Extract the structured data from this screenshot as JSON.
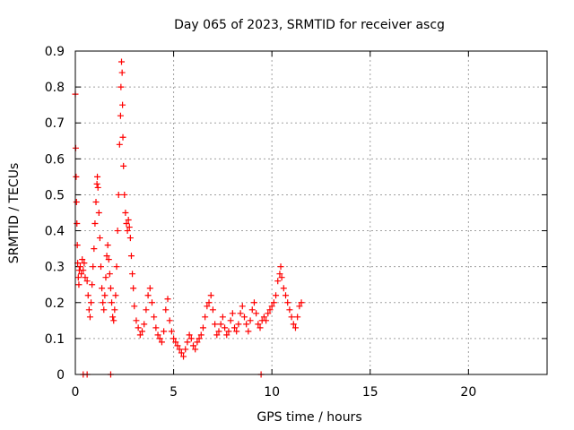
{
  "chart_data": {
    "type": "scatter",
    "title": "Day 065 of 2023, SRMTID for receiver ascg",
    "xlabel": "GPS time / hours",
    "ylabel": "SRMTID / TECUs",
    "xlim": [
      0,
      24
    ],
    "ylim": [
      0,
      0.9
    ],
    "xticks": [
      0,
      5,
      10,
      15,
      20
    ],
    "yticks": [
      0,
      0.1,
      0.2,
      0.3,
      0.4,
      0.5,
      0.6,
      0.7,
      0.8,
      0.9
    ],
    "grid": true,
    "marker": "+",
    "color": "#ff0000",
    "series": [
      {
        "name": "SRMTID",
        "points": [
          [
            0.0,
            0.78
          ],
          [
            0.02,
            0.63
          ],
          [
            0.04,
            0.55
          ],
          [
            0.06,
            0.48
          ],
          [
            0.08,
            0.42
          ],
          [
            0.1,
            0.36
          ],
          [
            0.12,
            0.31
          ],
          [
            0.15,
            0.27
          ],
          [
            0.18,
            0.25
          ],
          [
            0.2,
            0.29
          ],
          [
            0.25,
            0.3
          ],
          [
            0.3,
            0.28
          ],
          [
            0.35,
            0.32
          ],
          [
            0.4,
            0.29
          ],
          [
            0.45,
            0.31
          ],
          [
            0.5,
            0.27
          ],
          [
            0.6,
            0.26
          ],
          [
            0.65,
            0.22
          ],
          [
            0.7,
            0.18
          ],
          [
            0.75,
            0.16
          ],
          [
            0.8,
            0.2
          ],
          [
            0.85,
            0.25
          ],
          [
            0.9,
            0.3
          ],
          [
            0.95,
            0.35
          ],
          [
            1.0,
            0.42
          ],
          [
            1.05,
            0.48
          ],
          [
            1.1,
            0.53
          ],
          [
            1.12,
            0.55
          ],
          [
            1.15,
            0.52
          ],
          [
            1.2,
            0.45
          ],
          [
            1.25,
            0.38
          ],
          [
            1.3,
            0.3
          ],
          [
            1.35,
            0.24
          ],
          [
            1.4,
            0.2
          ],
          [
            1.45,
            0.18
          ],
          [
            1.5,
            0.22
          ],
          [
            1.55,
            0.27
          ],
          [
            1.6,
            0.33
          ],
          [
            1.65,
            0.36
          ],
          [
            1.7,
            0.32
          ],
          [
            1.75,
            0.28
          ],
          [
            1.8,
            0.24
          ],
          [
            1.85,
            0.2
          ],
          [
            1.9,
            0.16
          ],
          [
            1.95,
            0.15
          ],
          [
            2.0,
            0.18
          ],
          [
            2.05,
            0.22
          ],
          [
            2.1,
            0.3
          ],
          [
            2.15,
            0.4
          ],
          [
            2.2,
            0.5
          ],
          [
            2.25,
            0.64
          ],
          [
            2.3,
            0.72
          ],
          [
            2.32,
            0.8
          ],
          [
            2.35,
            0.87
          ],
          [
            2.38,
            0.84
          ],
          [
            2.4,
            0.75
          ],
          [
            2.42,
            0.66
          ],
          [
            2.45,
            0.58
          ],
          [
            2.5,
            0.5
          ],
          [
            2.55,
            0.45
          ],
          [
            2.6,
            0.42
          ],
          [
            2.65,
            0.4
          ],
          [
            2.7,
            0.43
          ],
          [
            2.75,
            0.41
          ],
          [
            2.8,
            0.38
          ],
          [
            2.85,
            0.33
          ],
          [
            2.9,
            0.28
          ],
          [
            2.95,
            0.24
          ],
          [
            3.0,
            0.19
          ],
          [
            3.1,
            0.15
          ],
          [
            3.2,
            0.13
          ],
          [
            3.3,
            0.11
          ],
          [
            3.4,
            0.12
          ],
          [
            3.5,
            0.14
          ],
          [
            3.6,
            0.18
          ],
          [
            3.7,
            0.22
          ],
          [
            3.8,
            0.24
          ],
          [
            3.9,
            0.2
          ],
          [
            4.0,
            0.16
          ],
          [
            4.1,
            0.13
          ],
          [
            4.2,
            0.11
          ],
          [
            4.3,
            0.1
          ],
          [
            4.4,
            0.09
          ],
          [
            4.5,
            0.12
          ],
          [
            4.6,
            0.18
          ],
          [
            4.7,
            0.21
          ],
          [
            4.8,
            0.15
          ],
          [
            4.9,
            0.12
          ],
          [
            5.0,
            0.1
          ],
          [
            5.1,
            0.09
          ],
          [
            5.2,
            0.08
          ],
          [
            5.3,
            0.07
          ],
          [
            5.4,
            0.06
          ],
          [
            5.5,
            0.05
          ],
          [
            5.6,
            0.07
          ],
          [
            5.7,
            0.09
          ],
          [
            5.8,
            0.11
          ],
          [
            5.9,
            0.1
          ],
          [
            6.0,
            0.08
          ],
          [
            6.1,
            0.07
          ],
          [
            6.2,
            0.09
          ],
          [
            6.3,
            0.1
          ],
          [
            6.4,
            0.11
          ],
          [
            6.5,
            0.13
          ],
          [
            6.6,
            0.16
          ],
          [
            6.7,
            0.19
          ],
          [
            6.8,
            0.2
          ],
          [
            6.9,
            0.22
          ],
          [
            7.0,
            0.18
          ],
          [
            7.1,
            0.14
          ],
          [
            7.2,
            0.11
          ],
          [
            7.3,
            0.12
          ],
          [
            7.4,
            0.14
          ],
          [
            7.5,
            0.16
          ],
          [
            7.6,
            0.13
          ],
          [
            7.7,
            0.11
          ],
          [
            7.8,
            0.12
          ],
          [
            7.9,
            0.15
          ],
          [
            8.0,
            0.17
          ],
          [
            8.1,
            0.13
          ],
          [
            8.2,
            0.12
          ],
          [
            8.3,
            0.14
          ],
          [
            8.4,
            0.17
          ],
          [
            8.5,
            0.19
          ],
          [
            8.6,
            0.16
          ],
          [
            8.7,
            0.14
          ],
          [
            8.8,
            0.12
          ],
          [
            8.9,
            0.15
          ],
          [
            9.0,
            0.18
          ],
          [
            9.1,
            0.2
          ],
          [
            9.2,
            0.17
          ],
          [
            9.3,
            0.14
          ],
          [
            9.4,
            0.13
          ],
          [
            9.5,
            0.15
          ],
          [
            9.6,
            0.16
          ],
          [
            9.7,
            0.15
          ],
          [
            9.8,
            0.17
          ],
          [
            9.9,
            0.18
          ],
          [
            10.0,
            0.19
          ],
          [
            10.1,
            0.2
          ],
          [
            10.2,
            0.22
          ],
          [
            10.3,
            0.26
          ],
          [
            10.4,
            0.28
          ],
          [
            10.45,
            0.3
          ],
          [
            10.5,
            0.27
          ],
          [
            10.6,
            0.24
          ],
          [
            10.7,
            0.22
          ],
          [
            10.8,
            0.2
          ],
          [
            10.9,
            0.18
          ],
          [
            11.0,
            0.16
          ],
          [
            11.1,
            0.14
          ],
          [
            11.2,
            0.13
          ],
          [
            11.3,
            0.16
          ],
          [
            11.4,
            0.19
          ],
          [
            11.5,
            0.2
          ],
          [
            0.4,
            0.0
          ],
          [
            0.6,
            0.0
          ],
          [
            1.8,
            0.0
          ],
          [
            9.45,
            0.0
          ]
        ]
      }
    ]
  }
}
